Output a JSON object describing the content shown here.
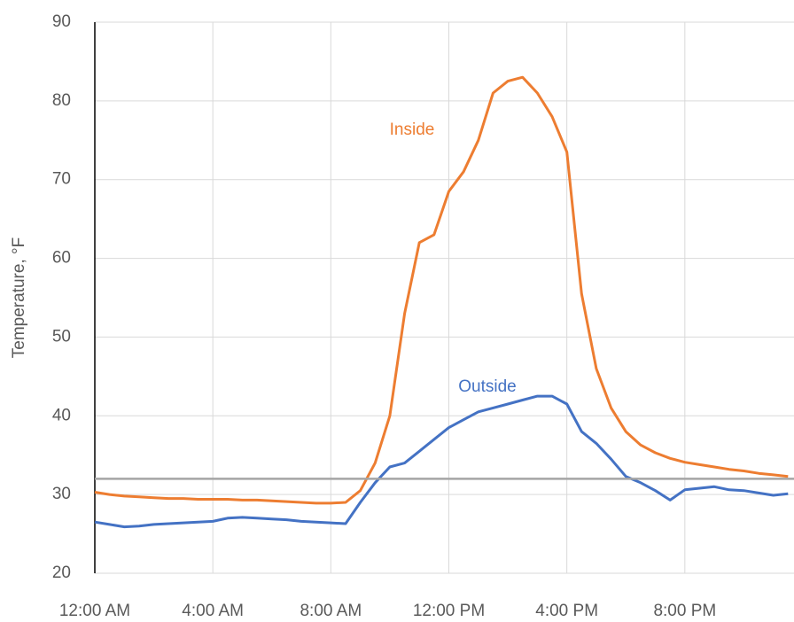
{
  "chart_data": {
    "type": "line",
    "y_label": "Temperature, °F",
    "x": [
      0,
      0.5,
      1,
      1.5,
      2,
      2.5,
      3,
      3.5,
      4,
      4.5,
      5,
      5.5,
      6,
      6.5,
      7,
      7.5,
      8,
      8.5,
      9,
      9.5,
      10,
      10.5,
      11,
      11.5,
      12,
      12.5,
      13,
      13.5,
      14,
      14.5,
      15,
      15.5,
      16,
      16.5,
      17,
      17.5,
      18,
      18.5,
      19,
      19.5,
      20,
      20.5,
      21,
      21.5,
      22,
      22.5,
      23,
      23.5
    ],
    "series": [
      {
        "name": "Inside",
        "color": "#ed7d31",
        "values": [
          30.3,
          30.0,
          29.8,
          29.7,
          29.6,
          29.5,
          29.5,
          29.4,
          29.4,
          29.4,
          29.3,
          29.3,
          29.2,
          29.1,
          29.0,
          28.9,
          28.9,
          29.0,
          30.5,
          34,
          40,
          53,
          62,
          63,
          68.5,
          71,
          75,
          81,
          82.5,
          83,
          81,
          78,
          73.5,
          55.5,
          46,
          41,
          38,
          36.3,
          35.3,
          34.6,
          34.1,
          33.8,
          33.5,
          33.2,
          33.0,
          32.7,
          32.5,
          32.3
        ]
      },
      {
        "name": "Outside",
        "color": "#4472c4",
        "values": [
          26.5,
          26.2,
          25.9,
          26.0,
          26.2,
          26.3,
          26.4,
          26.5,
          26.6,
          27.0,
          27.1,
          27.0,
          26.9,
          26.8,
          26.6,
          26.5,
          26.4,
          26.3,
          29,
          31.5,
          33.5,
          34,
          35.5,
          37,
          38.5,
          39.5,
          40.5,
          41,
          41.5,
          42,
          42.5,
          42.5,
          41.5,
          38,
          36.5,
          34.5,
          32.3,
          31.5,
          30.5,
          29.3,
          30.6,
          30.8,
          31.0,
          30.6,
          30.5,
          30.2,
          29.9,
          30.1
        ]
      }
    ],
    "hline": {
      "value": 32,
      "color": "#a5a5a5"
    },
    "xlim": [
      0,
      23.7
    ],
    "xticks": [
      {
        "value": 0,
        "label": "12:00 AM"
      },
      {
        "value": 4,
        "label": "4:00 AM"
      },
      {
        "value": 8,
        "label": "8:00 AM"
      },
      {
        "value": 12,
        "label": "12:00 PM"
      },
      {
        "value": 16,
        "label": "4:00 PM"
      },
      {
        "value": 20,
        "label": "8:00 PM"
      }
    ],
    "ylim": [
      20,
      90
    ],
    "yticks": [
      20,
      30,
      40,
      50,
      60,
      70,
      80,
      90
    ],
    "grid": true
  }
}
